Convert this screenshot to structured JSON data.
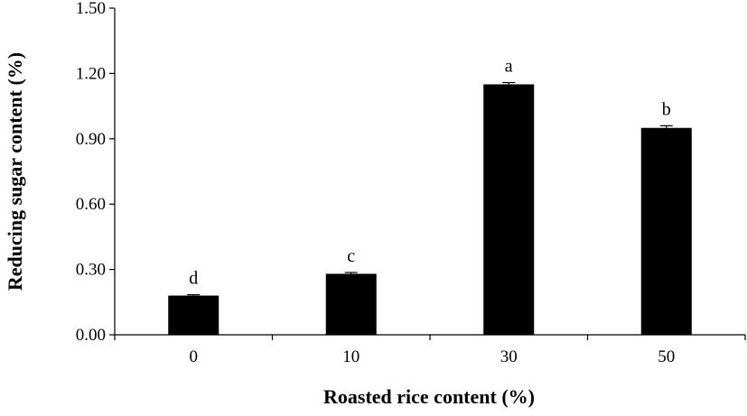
{
  "chart_data": {
    "type": "bar",
    "title": "",
    "xlabel": "Roasted rice content (%)",
    "ylabel": "Reducing sugar content (%)",
    "categories": [
      "0",
      "10",
      "30",
      "50"
    ],
    "values": [
      0.18,
      0.28,
      1.15,
      0.95
    ],
    "errors": [
      0.004,
      0.006,
      0.008,
      0.01
    ],
    "significance_labels": [
      "d",
      "c",
      "a",
      "b"
    ],
    "ylim": [
      0,
      1.5
    ],
    "yticks": [
      "0.00",
      "0.30",
      "0.60",
      "0.90",
      "1.20",
      "1.50"
    ],
    "grid": false,
    "bar_color": "#000000"
  }
}
